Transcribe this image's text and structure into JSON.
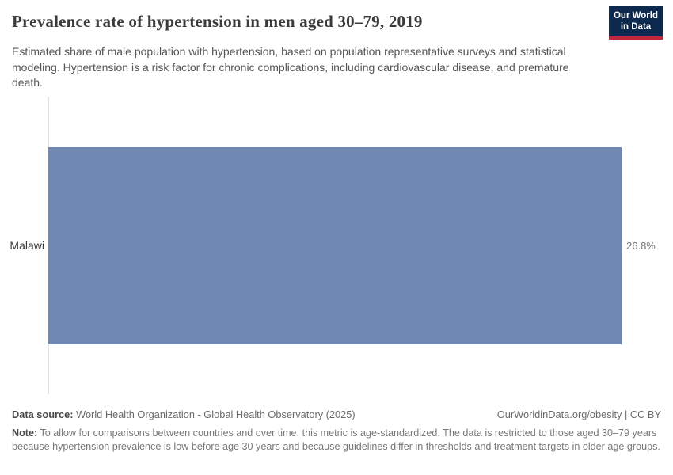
{
  "header": {
    "title": "Prevalence rate of hypertension in men aged 30–79, 2019",
    "subtitle": "Estimated share of male population with hypertension, based on population representative surveys and statistical modeling. Hypertension is a risk factor for chronic complications, including cardiovascular disease, and premature death.",
    "logo": {
      "line1": "Our World",
      "line2": "in Data",
      "bg_color": "#0d2a4e",
      "accent_color": "#c0293a"
    }
  },
  "chart_data": {
    "type": "bar",
    "orientation": "horizontal",
    "title": "Prevalence rate of hypertension in men aged 30–79, 2019",
    "categories": [
      "Malawi"
    ],
    "values": [
      26.8
    ],
    "value_labels": [
      "26.8%"
    ],
    "xlabel": "",
    "ylabel": "",
    "xlim": [
      0,
      26.8
    ],
    "bar_color": "#6e88b2",
    "grid": false,
    "legend": false
  },
  "footer": {
    "data_source_label": "Data source:",
    "data_source_value": "World Health Organization - Global Health Observatory (2025)",
    "attribution": "OurWorldinData.org/obesity | CC BY",
    "note_label": "Note:",
    "note_value": "To allow for comparisons between countries and over time, this metric is age-standardized. The data is restricted to those aged 30–79 years because hypertension prevalence is low before age 30 years and because guidelines differ in thresholds and treatment targets in older age groups."
  }
}
